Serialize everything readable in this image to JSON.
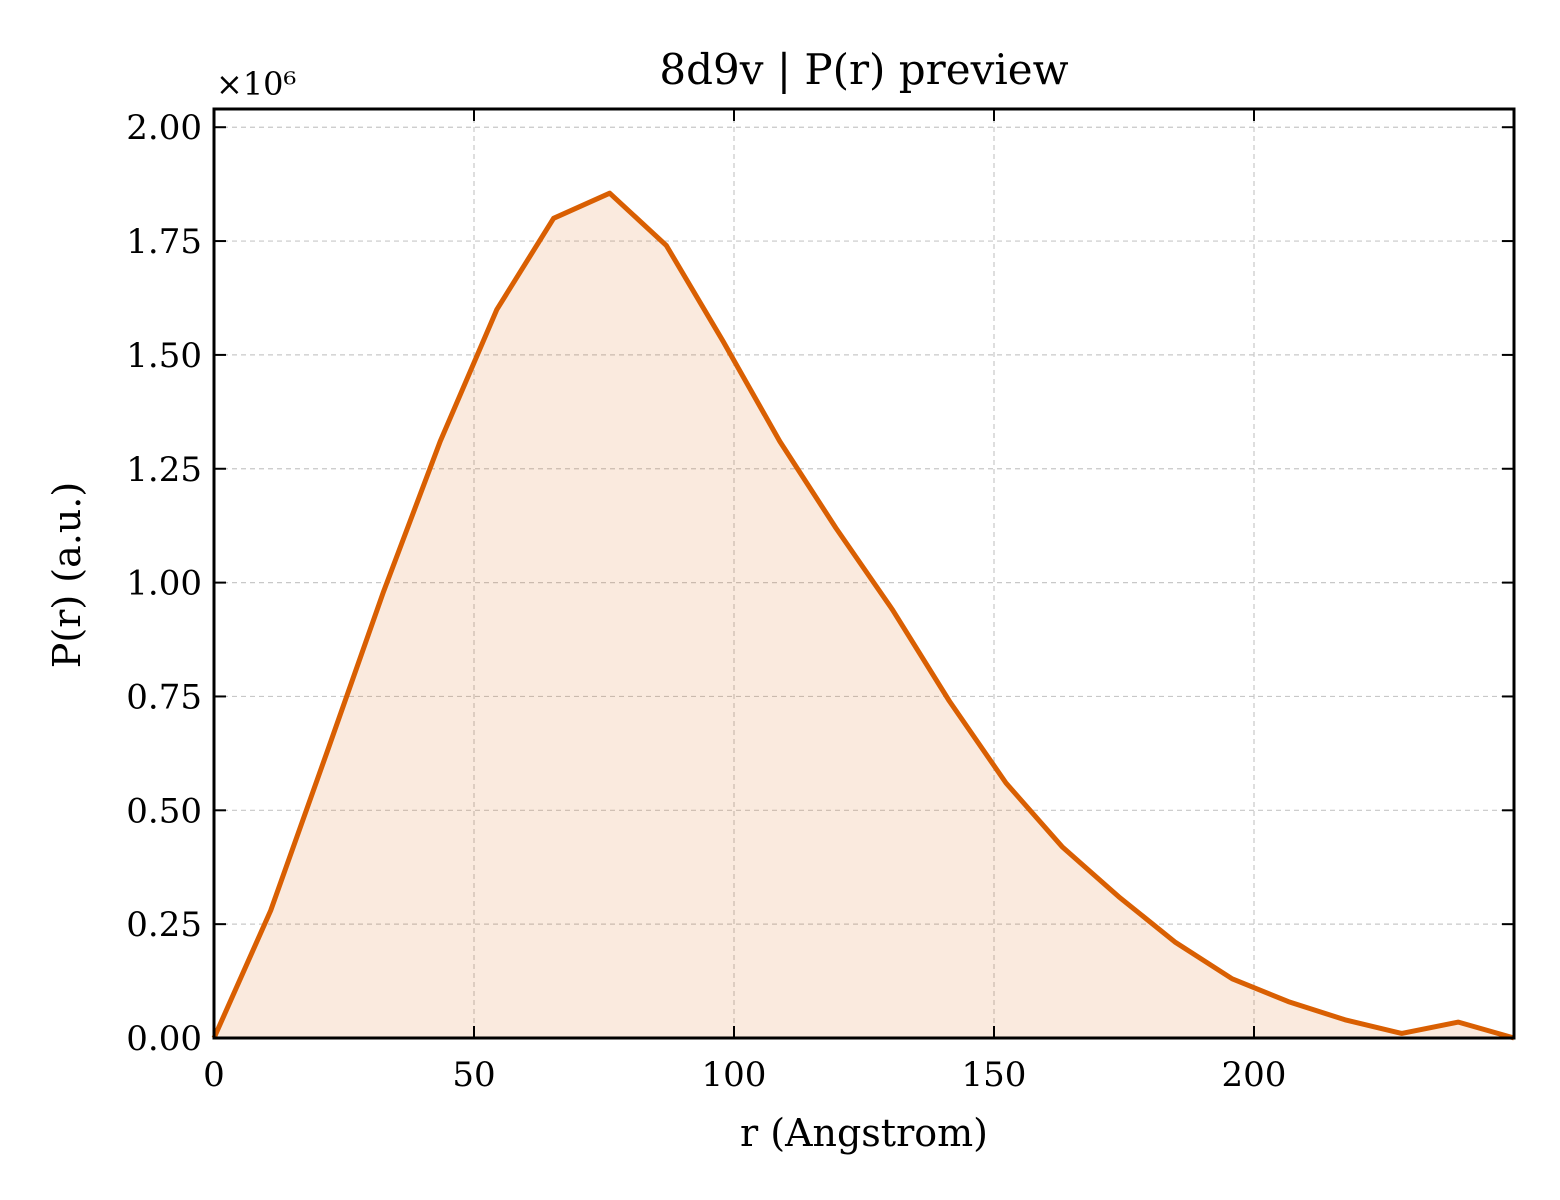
{
  "chart_data": {
    "type": "area",
    "title": "8d9v | P(r) preview",
    "xlabel": "r (Angstrom)",
    "ylabel": "P(r) (a.u.)",
    "y_scale_multiplier": "×10⁶",
    "xlim": [
      0,
      250
    ],
    "ylim": [
      0,
      2.04
    ],
    "x_ticks": [
      0,
      50,
      100,
      150,
      200
    ],
    "y_ticks": [
      0.0,
      0.25,
      0.5,
      0.75,
      1.0,
      1.25,
      1.5,
      1.75,
      2.0
    ],
    "x_tick_labels": [
      "0",
      "50",
      "100",
      "150",
      "200"
    ],
    "y_tick_labels": [
      "0.00",
      "0.25",
      "0.50",
      "0.75",
      "1.00",
      "1.25",
      "1.50",
      "1.75",
      "2.00"
    ],
    "grid": true,
    "series": [
      {
        "color": "#d95f02",
        "fill_color": "#d95f02",
        "x": [
          0,
          10.9,
          21.8,
          32.6,
          43.5,
          54.4,
          65.3,
          76.1,
          87.0,
          97.9,
          108.8,
          119.6,
          130.5,
          141.4,
          152.3,
          163.1,
          174.0,
          184.9,
          195.8,
          206.6,
          217.5,
          228.4,
          239.3,
          250.0
        ],
        "y": [
          0.0,
          0.28,
          0.63,
          0.98,
          1.31,
          1.6,
          1.8,
          1.855,
          1.74,
          1.53,
          1.31,
          1.12,
          0.94,
          0.74,
          0.56,
          0.42,
          0.31,
          0.21,
          0.13,
          0.08,
          0.04,
          0.01,
          0.035,
          0.0
        ]
      }
    ]
  }
}
